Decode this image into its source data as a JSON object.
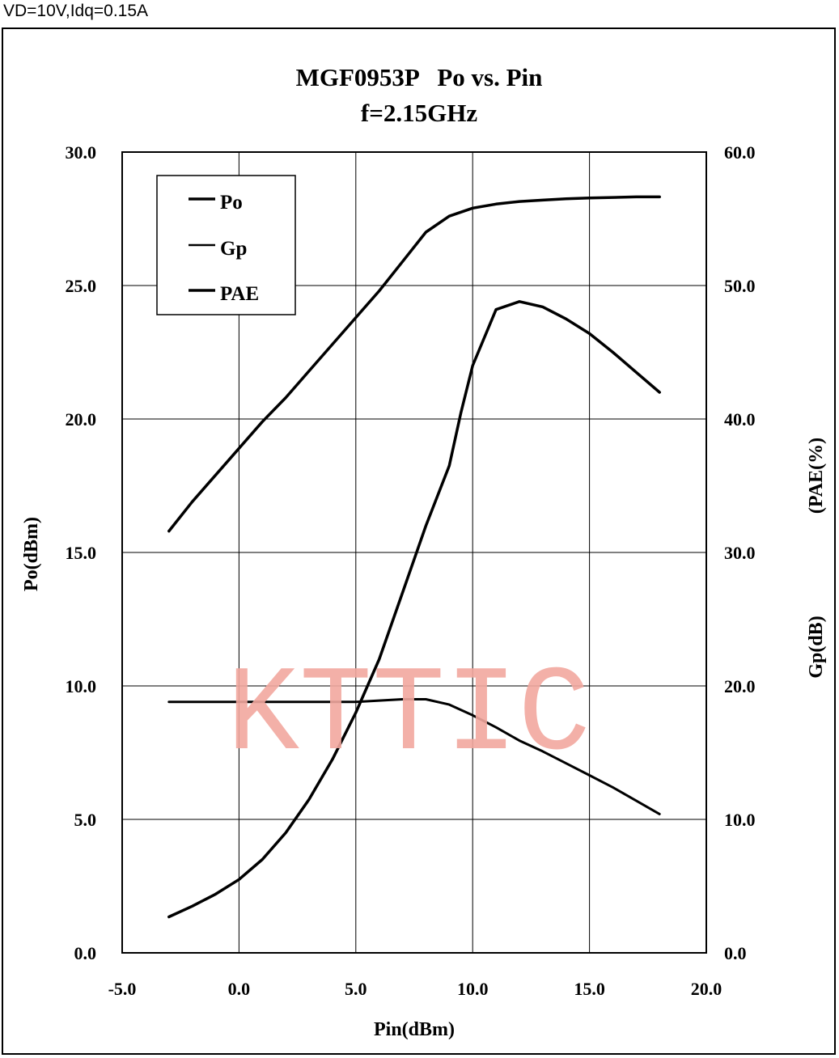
{
  "conditions": "VD=10V,Idq=0.15A",
  "watermark": "KTTIC",
  "chart_data": {
    "type": "line",
    "title": "MGF0953P   Po vs. Pin",
    "subtitle": "f=2.15GHz",
    "xlabel": "Pin(dBm)",
    "ylabel": "Po(dBm)",
    "y2label_top": "(PAE(%)",
    "y2label_bottom": "Gp(dB)",
    "xlim": [
      -5,
      20
    ],
    "ylim": [
      0,
      30
    ],
    "y2lim": [
      0,
      60
    ],
    "grid": true,
    "legend_position": "top-left",
    "x_tick_labels": [
      "-5.0",
      "0.0",
      "5.0",
      "10.0",
      "15.0",
      "20.0"
    ],
    "y_tick_labels": [
      "0.0",
      "5.0",
      "10.0",
      "15.0",
      "20.0",
      "25.0",
      "30.0"
    ],
    "y2_tick_labels": [
      "0.0",
      "10.0",
      "20.0",
      "30.0",
      "40.0",
      "50.0",
      "60.0"
    ],
    "series": [
      {
        "name": "Po",
        "axis": "left",
        "x": [
          -3,
          -2,
          -1,
          0,
          1,
          2,
          3,
          4,
          5,
          6,
          7,
          8,
          9,
          10,
          11,
          12,
          13,
          14,
          15,
          16,
          17,
          18
        ],
        "y": [
          15.8,
          16.9,
          17.9,
          18.9,
          19.9,
          20.8,
          21.8,
          22.8,
          23.8,
          24.8,
          25.9,
          27.0,
          27.6,
          27.9,
          28.05,
          28.15,
          28.2,
          28.25,
          28.28,
          28.3,
          28.32,
          28.32
        ]
      },
      {
        "name": "Gp",
        "axis": "right",
        "x": [
          -3,
          -2,
          -1,
          0,
          1,
          2,
          3,
          4,
          5,
          6,
          7,
          8,
          9,
          10,
          11,
          12,
          13,
          14,
          15,
          16,
          17,
          18
        ],
        "y": [
          18.8,
          18.8,
          18.8,
          18.8,
          18.8,
          18.8,
          18.8,
          18.8,
          18.8,
          18.9,
          19.0,
          19.0,
          18.6,
          17.8,
          16.9,
          15.9,
          15.1,
          14.2,
          13.3,
          12.4,
          11.4,
          10.4
        ]
      },
      {
        "name": "PAE",
        "axis": "right",
        "x": [
          -3,
          -2,
          -1,
          0,
          1,
          2,
          3,
          4,
          5,
          6,
          7,
          8,
          9,
          9.5,
          10,
          11,
          12,
          13,
          14,
          15,
          16,
          17,
          18
        ],
        "y": [
          2.7,
          3.5,
          4.4,
          5.5,
          7.0,
          9.0,
          11.5,
          14.5,
          18.0,
          22.0,
          27.0,
          32.0,
          36.5,
          40.5,
          44.0,
          48.2,
          48.8,
          48.4,
          47.5,
          46.4,
          45.0,
          43.5,
          42.0
        ]
      }
    ]
  }
}
